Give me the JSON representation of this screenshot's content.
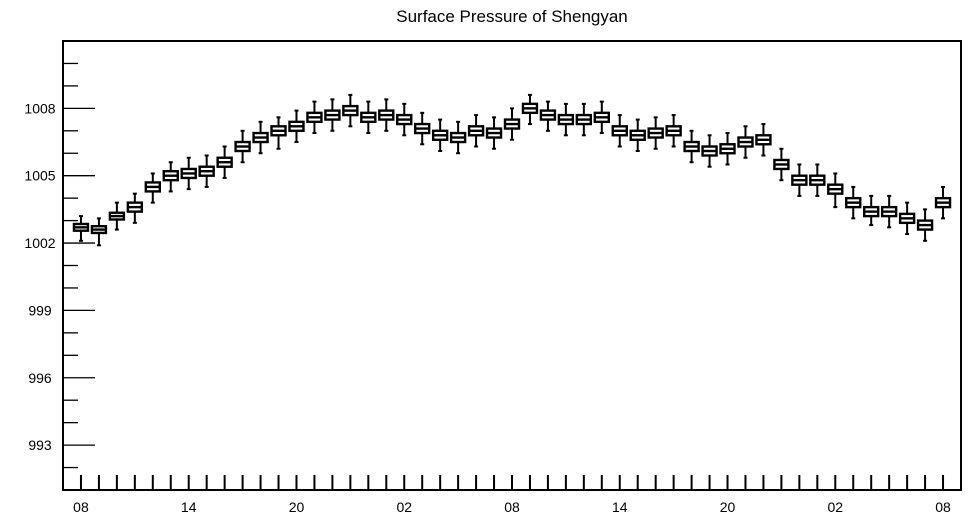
{
  "chart_data": {
    "type": "box",
    "title": "Surface Pressure of Shengyan",
    "xlabel": "",
    "ylabel": "",
    "ylim": [
      991,
      1011
    ],
    "y_ticks": [
      993,
      996,
      999,
      1002,
      1005,
      1008
    ],
    "y_tick_labels": [
      "993",
      "996",
      "999",
      "1002",
      "1005",
      "1008"
    ],
    "x_tick_labels": [
      "08",
      "14",
      "20",
      "02",
      "08",
      "14",
      "20",
      "02",
      "08"
    ],
    "x_tick_hours": [
      0,
      6,
      12,
      18,
      24,
      30,
      36,
      42,
      48
    ],
    "x_range_hours": [
      -1,
      49
    ],
    "box_hours": [
      0,
      1,
      2,
      3,
      4,
      5,
      6,
      7,
      8,
      9,
      10,
      11,
      12,
      13,
      14,
      15,
      16,
      17,
      18,
      19,
      20,
      21,
      22,
      23,
      24,
      25,
      26,
      27,
      28,
      29,
      30,
      31,
      32,
      33,
      34,
      35,
      36,
      37,
      38,
      39,
      40,
      41,
      42,
      43,
      44,
      45,
      46,
      47,
      48
    ],
    "medians": [
      1002.7,
      1002.6,
      1003.2,
      1003.6,
      1004.5,
      1005.0,
      1005.1,
      1005.2,
      1005.6,
      1006.3,
      1006.7,
      1007.0,
      1007.2,
      1007.6,
      1007.7,
      1007.9,
      1007.6,
      1007.7,
      1007.5,
      1007.1,
      1006.8,
      1006.7,
      1007.0,
      1006.9,
      1007.3,
      1008.0,
      1007.7,
      1007.5,
      1007.5,
      1007.6,
      1007.0,
      1006.8,
      1006.9,
      1007.0,
      1006.3,
      1006.1,
      1006.2,
      1006.5,
      1006.6,
      1005.5,
      1004.8,
      1004.8,
      1004.4,
      1003.8,
      1003.4,
      1003.4,
      1003.1,
      1002.8,
      1003.8
    ],
    "q1": [
      1002.55,
      1002.45,
      1003.05,
      1003.4,
      1004.3,
      1004.8,
      1004.9,
      1005.0,
      1005.4,
      1006.1,
      1006.5,
      1006.8,
      1007.0,
      1007.4,
      1007.5,
      1007.7,
      1007.4,
      1007.5,
      1007.3,
      1006.9,
      1006.6,
      1006.5,
      1006.8,
      1006.7,
      1007.1,
      1007.8,
      1007.5,
      1007.3,
      1007.3,
      1007.4,
      1006.8,
      1006.6,
      1006.7,
      1006.8,
      1006.1,
      1005.9,
      1006.0,
      1006.3,
      1006.4,
      1005.3,
      1004.6,
      1004.6,
      1004.2,
      1003.6,
      1003.2,
      1003.2,
      1002.9,
      1002.6,
      1003.6
    ],
    "q3": [
      1002.85,
      1002.75,
      1003.35,
      1003.8,
      1004.7,
      1005.2,
      1005.3,
      1005.4,
      1005.8,
      1006.5,
      1006.9,
      1007.2,
      1007.4,
      1007.8,
      1007.9,
      1008.1,
      1007.8,
      1007.9,
      1007.7,
      1007.3,
      1007.0,
      1006.9,
      1007.2,
      1007.1,
      1007.5,
      1008.2,
      1007.9,
      1007.7,
      1007.7,
      1007.8,
      1007.2,
      1007.0,
      1007.1,
      1007.2,
      1006.5,
      1006.3,
      1006.4,
      1006.7,
      1006.8,
      1005.7,
      1005.0,
      1005.0,
      1004.6,
      1004.0,
      1003.6,
      1003.6,
      1003.3,
      1003.0,
      1004.0
    ],
    "whisker_low": [
      1002.1,
      1001.9,
      1002.6,
      1002.9,
      1003.8,
      1004.3,
      1004.4,
      1004.5,
      1004.9,
      1005.6,
      1006.0,
      1006.2,
      1006.5,
      1006.9,
      1007.0,
      1007.2,
      1006.9,
      1007.0,
      1006.8,
      1006.4,
      1006.1,
      1006.0,
      1006.3,
      1006.2,
      1006.6,
      1007.3,
      1007.0,
      1006.8,
      1006.8,
      1006.9,
      1006.3,
      1006.1,
      1006.2,
      1006.3,
      1005.6,
      1005.4,
      1005.5,
      1005.8,
      1005.9,
      1004.8,
      1004.1,
      1004.1,
      1003.6,
      1003.1,
      1002.8,
      1002.7,
      1002.4,
      1002.1,
      1003.1
    ],
    "whisker_high": [
      1003.2,
      1003.1,
      1003.8,
      1004.2,
      1005.1,
      1005.6,
      1005.8,
      1005.9,
      1006.3,
      1007.0,
      1007.4,
      1007.6,
      1007.9,
      1008.3,
      1008.4,
      1008.6,
      1008.3,
      1008.4,
      1008.2,
      1007.8,
      1007.5,
      1007.4,
      1007.7,
      1007.6,
      1008.0,
      1008.6,
      1008.3,
      1008.2,
      1008.2,
      1008.3,
      1007.7,
      1007.5,
      1007.6,
      1007.7,
      1007.0,
      1006.8,
      1006.9,
      1007.2,
      1007.3,
      1006.2,
      1005.5,
      1005.5,
      1005.1,
      1004.5,
      1004.1,
      1004.1,
      1003.8,
      1003.5,
      1004.5
    ],
    "grid": false,
    "legend": "none"
  }
}
